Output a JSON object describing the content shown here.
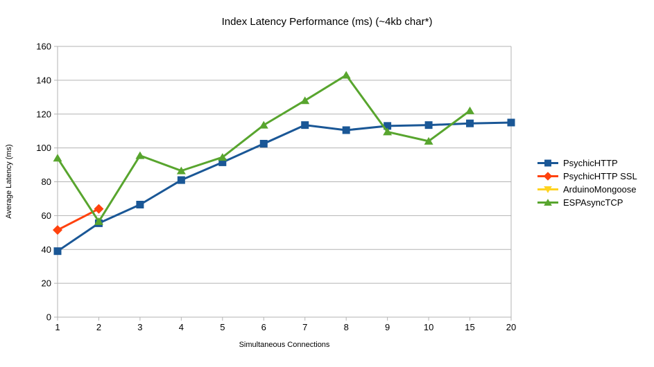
{
  "title": "Index Latency Performance (ms) (~4kb char*)",
  "chart_data": {
    "type": "line",
    "title": "Index Latency Performance (ms) (~4kb char*)",
    "xlabel": "Simultaneous Connections",
    "ylabel": "Average Latency (ms)",
    "categories": [
      "1",
      "2",
      "3",
      "4",
      "5",
      "6",
      "7",
      "8",
      "9",
      "10",
      "15",
      "20"
    ],
    "ylim": [
      0,
      160
    ],
    "ytick_step": 20,
    "yticks": [
      "0",
      "20",
      "40",
      "60",
      "80",
      "100",
      "120",
      "140",
      "160"
    ],
    "grid": "horizontal",
    "legend_position": "right",
    "axis_color": "#b3b3b3",
    "text_color": "#000000",
    "background_color": "#ffffff",
    "series": [
      {
        "name": "PsychicHTTP",
        "color": "#1a5796",
        "marker": "square",
        "values": [
          39,
          55.5,
          66.5,
          81,
          91.5,
          102.5,
          113.5,
          110.5,
          113,
          113.5,
          114.5,
          115
        ]
      },
      {
        "name": "PsychicHTTP SSL",
        "color": "#ff420e",
        "marker": "diamond",
        "values": [
          51.5,
          64,
          null,
          null,
          null,
          null,
          null,
          null,
          null,
          null,
          null,
          null
        ]
      },
      {
        "name": "ArduinoMongoose",
        "color": "#ffd320",
        "marker": "triangle-down",
        "values": [
          null,
          null,
          null,
          null,
          null,
          null,
          null,
          null,
          null,
          null,
          null,
          null
        ]
      },
      {
        "name": "ESPAsyncTCP",
        "color": "#58a52e",
        "marker": "triangle-up",
        "values": [
          94,
          56.5,
          95.5,
          86.5,
          94.5,
          113.5,
          128,
          143,
          109.5,
          104,
          122,
          null
        ]
      }
    ]
  }
}
